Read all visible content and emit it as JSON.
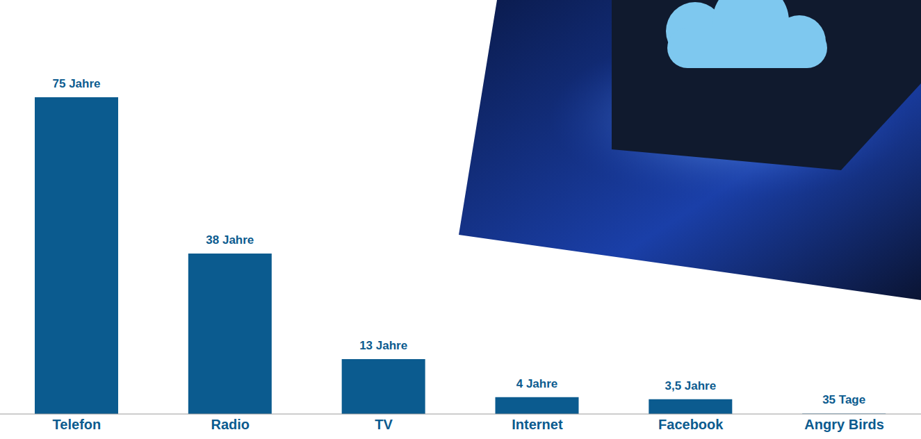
{
  "chart_data": {
    "type": "bar",
    "categories": [
      "Telefon",
      "Radio",
      "TV",
      "Internet",
      "Facebook",
      "Angry Birds"
    ],
    "values": [
      75,
      38,
      13,
      4,
      3.5,
      0.0959
    ],
    "value_labels": [
      "75 Jahre",
      "38 Jahre",
      "13 Jahre",
      "4 Jahre",
      "3,5 Jahre",
      "35 Tage"
    ],
    "color": "#0b5b8f",
    "data_labels": true,
    "tick_labels": "x",
    "grid": false
  }
}
